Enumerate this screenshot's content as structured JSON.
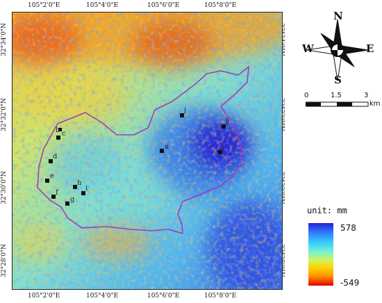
{
  "top_coords": [
    "105°2'0\"E",
    "105°4'0\"E",
    "105°6'0\"E",
    "105°8'0\"E"
  ],
  "bottom_coords": [
    "105°2'0\"E",
    "105°4'0\"E",
    "105°6'0\"E",
    "105°8'0\"E"
  ],
  "left_coords": [
    "32°34'0\"N",
    "32°32'0\"N",
    "32°30'0\"N",
    "32°28'0\"N"
  ],
  "right_coords": [
    "32°34'0\"N",
    "32°32'0\"N",
    "32°30'0\"N",
    "32°28'0\"N"
  ],
  "compass": {
    "n": "N",
    "s": "S",
    "e": "E",
    "w": "W"
  },
  "scale": {
    "labels": [
      "0",
      "1.5",
      "3"
    ],
    "unit": "km"
  },
  "legend": {
    "title": "unit: mm",
    "max": "578",
    "min": "-549",
    "colors": {
      "max": "#2b1fd6",
      "mid": "#d6f25a",
      "min": "#e00000"
    }
  },
  "map": {
    "boundary_color": "#a23bb5",
    "point_labels": [
      "a",
      "b",
      "c",
      "d",
      "e",
      "f",
      "g",
      "h",
      "i",
      "j",
      "k",
      "l"
    ]
  }
}
